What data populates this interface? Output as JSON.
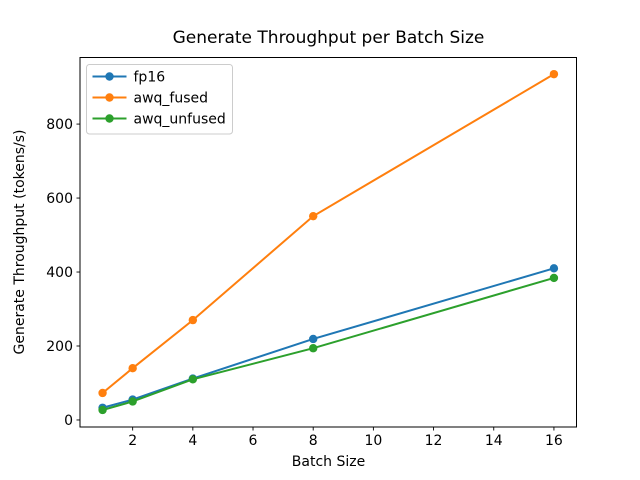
{
  "chart_data": {
    "type": "line",
    "title": "Generate Throughput per Batch Size",
    "xlabel": "Batch Size",
    "ylabel": "Generate Throughput (tokens/s)",
    "x": [
      1,
      2,
      4,
      8,
      16
    ],
    "series": [
      {
        "name": "fp16",
        "color": "#1f77b4",
        "values": [
          33,
          55,
          112,
          219,
          410
        ]
      },
      {
        "name": "awq_fused",
        "color": "#ff7f0e",
        "values": [
          73,
          140,
          270,
          551,
          935
        ]
      },
      {
        "name": "awq_unfused",
        "color": "#2ca02c",
        "values": [
          27,
          50,
          110,
          194,
          384
        ]
      }
    ],
    "xticks": [
      2,
      4,
      6,
      8,
      10,
      12,
      14,
      16
    ],
    "yticks": [
      0,
      200,
      400,
      600,
      800
    ],
    "xlim": [
      0.25,
      16.75
    ],
    "ylim": [
      -19,
      980
    ],
    "grid": false,
    "marker": "circle",
    "legend": {
      "position": "upper left",
      "entries": [
        "fp16",
        "awq_fused",
        "awq_unfused"
      ]
    },
    "colors": {
      "axis": "#000000",
      "legend_border": "#cccccc",
      "background": "#ffffff"
    }
  }
}
